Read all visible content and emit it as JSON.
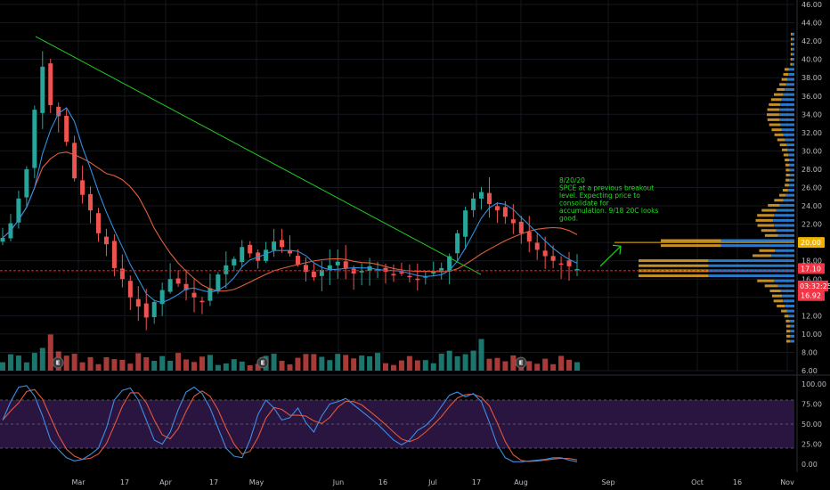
{
  "chart_data": {
    "type": "candlestick",
    "symbol_note_lines": [
      "8/20/20",
      "SPCE at a previous breakout",
      "level. Expecting price to",
      "consolidate for",
      "accumulation. 9/18 20C looks",
      "good."
    ],
    "price_axis": {
      "ticks": [
        "46.00",
        "44.00",
        "42.00",
        "40.00",
        "38.00",
        "36.00",
        "34.00",
        "32.00",
        "30.00",
        "28.00",
        "26.00",
        "24.00",
        "22.00",
        "20.00",
        "18.00",
        "16.00",
        "14.00",
        "12.00",
        "10.00",
        "8.00",
        "6.00"
      ],
      "ylim": [
        6,
        46
      ]
    },
    "price_tags": {
      "target": {
        "label": "20.00",
        "value": 20.0,
        "color": "#f0b400"
      },
      "last": {
        "label": "17.10",
        "value": 17.1,
        "color": "#f23645"
      },
      "countdown": {
        "label": "03:32:25",
        "color": "#f23645"
      },
      "support": {
        "label": "16.92",
        "value": 16.92,
        "color": "#f23645"
      }
    },
    "stoch_axis": {
      "ticks": [
        "100.00",
        "75.00",
        "50.00",
        "25.00",
        "0.00"
      ],
      "ylim": [
        0,
        100
      ],
      "band": [
        20,
        80
      ]
    },
    "time_axis": {
      "labels": [
        "Mar",
        "17",
        "Apr",
        "17",
        "May",
        "Jun",
        "16",
        "Jul",
        "17",
        "Aug",
        "Sep",
        "Oct",
        "16",
        "Nov"
      ]
    },
    "earnings_marker": "E",
    "colors": {
      "up": "#26a69a",
      "down": "#ef5350",
      "ma_fast": "#2f8fe0",
      "ma_slow": "#e0603a",
      "trendline": "#22cc22",
      "support_line": "#ff1010",
      "target_line": "#f0b400",
      "stoch_k": "#3d8ee6",
      "stoch_d": "#e2573b",
      "stoch_band": "#2a1440",
      "vp_up": "#2f82d9",
      "vp_down": "#d49a2a"
    },
    "series_samples": {
      "close": [
        20.5,
        22.1,
        24.8,
        28.0,
        34.5,
        39.2,
        35.0,
        33.8,
        31.0,
        27.0,
        25.2,
        23.5,
        21.0,
        19.8,
        17.2,
        16.0,
        14.0,
        13.0,
        11.8,
        13.5,
        14.8,
        16.0,
        15.5,
        14.8,
        14.0,
        13.5,
        15.0,
        16.5,
        17.5,
        18.2,
        19.5,
        18.8,
        18.0,
        19.2,
        20.1,
        19.5,
        18.8,
        17.6,
        16.8,
        16.2,
        17.0,
        17.5,
        17.9,
        17.2,
        16.6,
        16.9,
        17.4,
        17.1,
        16.8,
        16.4,
        16.6,
        16.2,
        15.9,
        16.3,
        16.8,
        17.2,
        18.5,
        21.0,
        23.5,
        24.8,
        25.5,
        24.2,
        23.5,
        22.8,
        22.1,
        21.0,
        20.1,
        19.2,
        18.5,
        18.0,
        17.7,
        17.4,
        17.1
      ],
      "stoch_k": [
        55,
        78,
        96,
        98,
        85,
        60,
        30,
        18,
        8,
        4,
        6,
        12,
        20,
        45,
        80,
        92,
        95,
        80,
        55,
        30,
        25,
        40,
        68,
        90,
        96,
        88,
        70,
        45,
        20,
        10,
        8,
        30,
        62,
        80,
        70,
        55,
        58,
        70,
        52,
        40,
        60,
        75,
        78,
        82,
        74,
        66,
        58,
        50,
        40,
        30,
        24,
        30,
        42,
        48,
        58,
        72,
        86,
        90,
        84,
        88,
        78,
        52,
        24,
        8,
        3,
        3,
        4,
        5,
        6,
        8,
        8,
        5,
        3
      ]
    }
  }
}
